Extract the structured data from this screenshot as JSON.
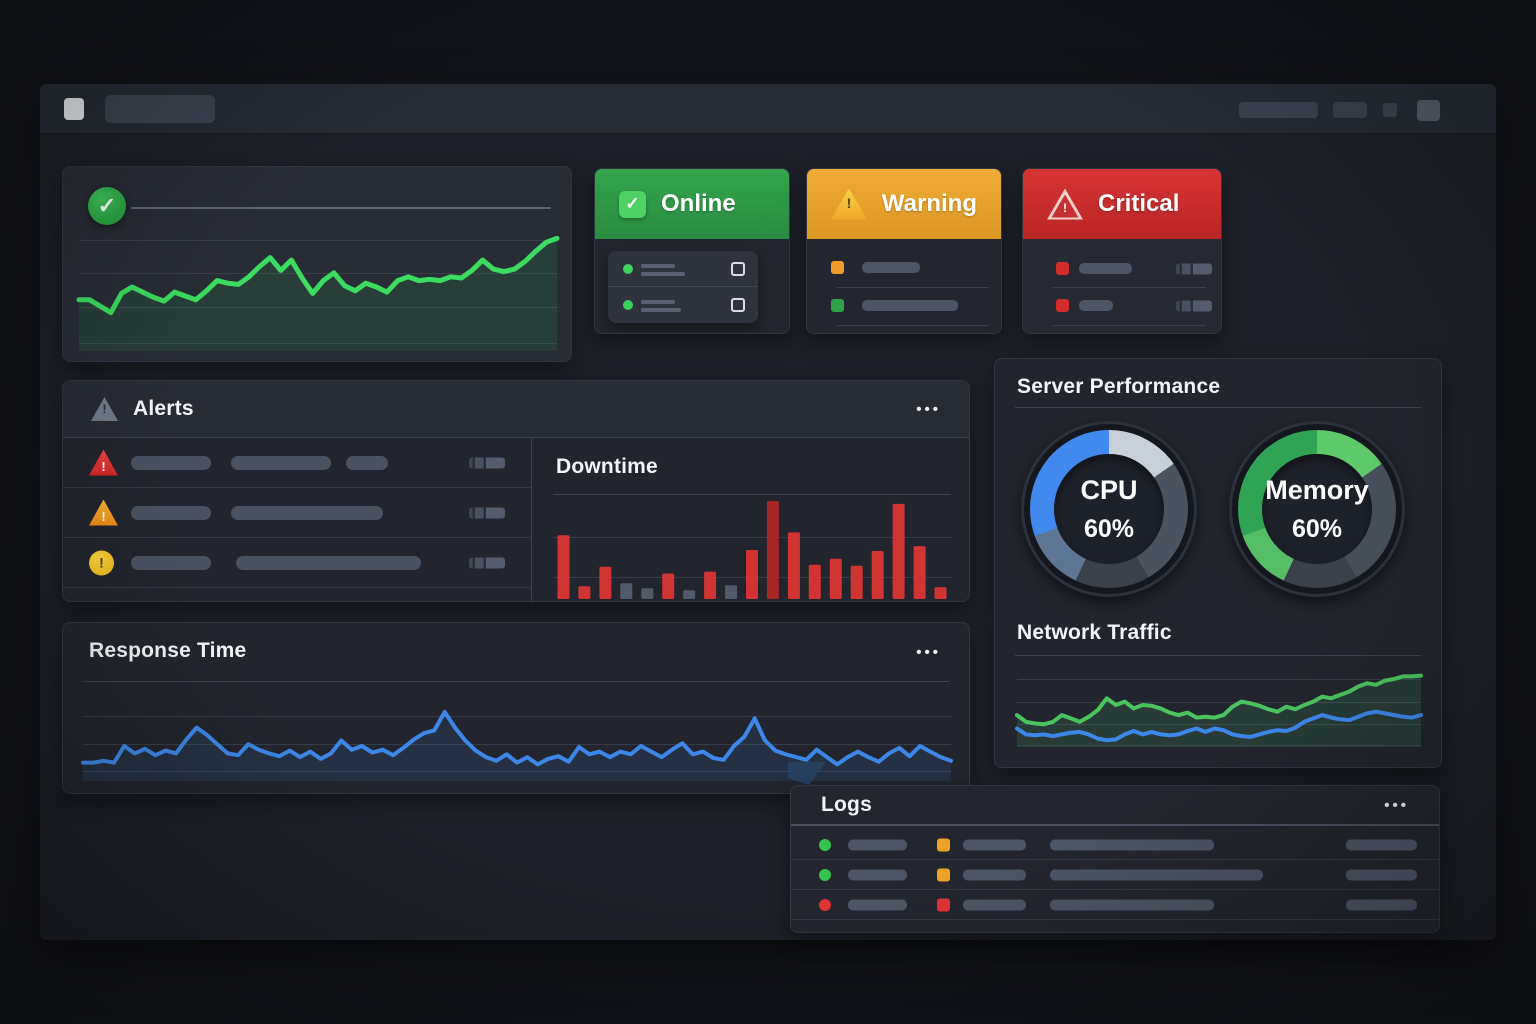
{
  "icons": {
    "check": "✓",
    "exclamation": "!",
    "ellipsis": "•••"
  },
  "colors": {
    "online_green": "#2f9e44",
    "warning_amber": "#e8a33b",
    "critical_red": "#c92f2f",
    "accent_blue": "#3d87ea",
    "accent_green": "#3ddc63",
    "bar_red": "#d23434",
    "bar_dark_red": "#a62727",
    "bar_gray": "#525a68",
    "log_green": "#35c24f",
    "log_orange": "#efa229",
    "log_red": "#e03434"
  },
  "status_cards": {
    "online": {
      "label": "Online"
    },
    "warning": {
      "label": "Warning"
    },
    "critical": {
      "label": "Critical"
    }
  },
  "alerts": {
    "title": "Alerts",
    "rows": [
      {
        "icon": "tri-red",
        "severity": "critical",
        "bars": [
          [
            68,
            80
          ],
          [
            168,
            100
          ],
          [
            283,
            42
          ]
        ]
      },
      {
        "icon": "tri-orange",
        "severity": "warning",
        "bars": [
          [
            68,
            80
          ],
          [
            168,
            152
          ]
        ]
      },
      {
        "icon": "circ-yellow",
        "severity": "notice",
        "bars": [
          [
            68,
            80
          ],
          [
            173,
            185
          ]
        ]
      }
    ]
  },
  "downtime": {
    "title": "Downtime"
  },
  "response_time": {
    "title": "Response Time"
  },
  "server_performance": {
    "title": "Server Performance",
    "gauges": [
      {
        "label": "CPU",
        "value": "60%"
      },
      {
        "label": "Memory",
        "value": "60%"
      }
    ]
  },
  "network_traffic": {
    "title": "Network Traffic"
  },
  "logs": {
    "title": "Logs",
    "rows": [
      {
        "dot": "green",
        "badge": "orange",
        "long_bar": 164
      },
      {
        "dot": "green",
        "badge": "orange",
        "long_bar": 213
      },
      {
        "dot": "red",
        "badge": "red",
        "long_bar": 164
      }
    ]
  },
  "chart_data": [
    {
      "id": "status-trend",
      "type": "line",
      "title": "",
      "xlabel": "",
      "ylabel": "",
      "ylim": [
        0,
        100
      ],
      "grid": true,
      "scale": "relative-percent",
      "series": [
        {
          "name": "green",
          "color": "#3bdc5f",
          "fill": "rgba(62,220,100,0.10)",
          "width": 5,
          "values": [
            40,
            40,
            35,
            30,
            45,
            50,
            46,
            42,
            39,
            46,
            43,
            40,
            47,
            55,
            53,
            52,
            58,
            66,
            73,
            63,
            71,
            57,
            45,
            55,
            61,
            51,
            47,
            53,
            50,
            46,
            55,
            58,
            55,
            56,
            55,
            58,
            57,
            63,
            71,
            64,
            62,
            64,
            70,
            78,
            85,
            88
          ]
        }
      ]
    },
    {
      "id": "downtime",
      "type": "bar",
      "title": "Downtime",
      "xlabel": "",
      "ylabel": "",
      "ylim": [
        0,
        100
      ],
      "grid": true,
      "scale": "relative-percent",
      "values": [
        65,
        13,
        33,
        16,
        11,
        26,
        9,
        28,
        14,
        50,
        100,
        68,
        35,
        41,
        34,
        49,
        97,
        54,
        12
      ],
      "colors": [
        "red",
        "red",
        "red",
        "gray",
        "gray",
        "red",
        "gray",
        "red",
        "gray",
        "red",
        "darkred",
        "red",
        "red",
        "red",
        "red",
        "red",
        "red",
        "red",
        "red"
      ],
      "palette": {
        "red": "#d23434",
        "darkred": "#a62727",
        "gray": "#525a68"
      }
    },
    {
      "id": "response-time",
      "type": "line",
      "title": "Response Time",
      "xlabel": "",
      "ylabel": "",
      "ylim": [
        0,
        100
      ],
      "grid": true,
      "scale": "relative-percent",
      "series": [
        {
          "name": "blue",
          "color": "#3d87ea",
          "fill": "rgba(60,130,210,0.13)",
          "width": 4,
          "values": [
            20,
            20,
            22,
            20,
            38,
            30,
            35,
            28,
            33,
            30,
            45,
            58,
            50,
            40,
            30,
            28,
            40,
            34,
            30,
            27,
            33,
            26,
            32,
            24,
            30,
            44,
            34,
            38,
            31,
            34,
            28,
            36,
            45,
            52,
            55,
            75,
            58,
            44,
            33,
            26,
            22,
            29,
            20,
            26,
            18,
            24,
            27,
            21,
            37,
            29,
            32,
            26,
            32,
            29,
            38,
            32,
            26,
            34,
            41,
            29,
            32,
            25,
            23,
            38,
            48,
            68,
            44,
            33,
            29,
            26,
            23,
            34,
            26,
            18,
            26,
            32,
            26,
            21,
            30,
            36,
            27,
            38,
            32,
            26,
            22
          ]
        }
      ]
    },
    {
      "id": "network-traffic",
      "type": "line",
      "title": "Network Traffic",
      "xlabel": "",
      "ylabel": "",
      "ylim": [
        0,
        100
      ],
      "grid": true,
      "scale": "relative-percent",
      "series": [
        {
          "name": "green",
          "color": "#4cc45e",
          "fill": "rgba(80,200,120,0.14)",
          "width": 4,
          "values": [
            38,
            30,
            28,
            27,
            30,
            38,
            34,
            30,
            36,
            44,
            58,
            50,
            54,
            46,
            50,
            49,
            46,
            41,
            38,
            41,
            35,
            36,
            35,
            38,
            48,
            54,
            52,
            49,
            45,
            42,
            48,
            45,
            50,
            54,
            60,
            58,
            62,
            66,
            72,
            76,
            74,
            79,
            81,
            84,
            84,
            85
          ]
        },
        {
          "name": "blue",
          "color": "#3d87ea",
          "width": 4,
          "values": [
            22,
            15,
            14,
            15,
            13,
            15,
            17,
            18,
            15,
            10,
            8,
            9,
            15,
            19,
            15,
            18,
            15,
            14,
            15,
            19,
            22,
            18,
            22,
            20,
            15,
            13,
            12,
            15,
            18,
            20,
            19,
            23,
            30,
            34,
            38,
            35,
            33,
            32,
            36,
            40,
            42,
            40,
            38,
            36,
            35,
            38
          ]
        }
      ]
    },
    {
      "id": "cpu-gauge",
      "type": "donut",
      "label": "CPU",
      "value_percent": 60,
      "display": "60%",
      "segments": [
        {
          "color": "#c7d0d8",
          "end": 55
        },
        {
          "color": "#4b545e",
          "end": 150
        },
        {
          "color": "#3a414b",
          "end": 205
        },
        {
          "color": "#5d7694",
          "end": 250
        },
        {
          "color": "#4189ef",
          "end": 360
        }
      ]
    },
    {
      "id": "memory-gauge",
      "type": "donut",
      "label": "Memory",
      "value_percent": 60,
      "display": "60%",
      "segments": [
        {
          "color": "#5ec96a",
          "end": 55
        },
        {
          "color": "#47505a",
          "end": 150
        },
        {
          "color": "#3a414b",
          "end": 205
        },
        {
          "color": "#55bd66",
          "end": 250
        },
        {
          "color": "#2ea454",
          "end": 360
        }
      ]
    }
  ]
}
